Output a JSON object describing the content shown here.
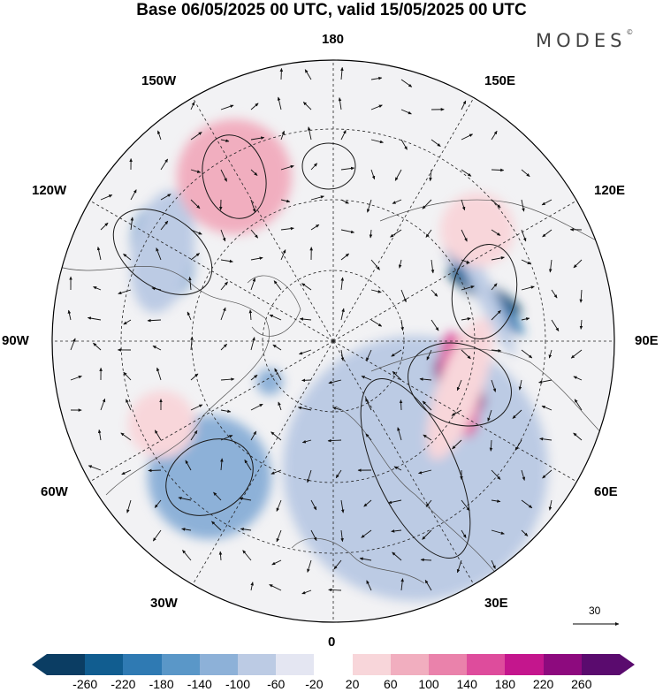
{
  "title": "Base 06/05/2025 00 UTC, valid 15/05/2025 00 UTC",
  "brand": "MODES",
  "brand_mark": "©",
  "projection": "north-polar-stereographic",
  "longitude_labels": {
    "lon_180": "180",
    "lon_150e": "150E",
    "lon_120e": "120E",
    "lon_90e": "90E",
    "lon_60e": "60E",
    "lon_30e": "30E",
    "lon_0": "0",
    "lon_30w": "30W",
    "lon_60w": "60W",
    "lon_90w": "90W",
    "lon_120w": "120W",
    "lon_150w": "150W"
  },
  "reference_vector": {
    "label": "30"
  },
  "colorbar": {
    "colors": [
      "#0b3d63",
      "#115d90",
      "#2f7ab3",
      "#5a97c8",
      "#8db1d8",
      "#bccbe4",
      "#e4e6f2",
      "#ffffff",
      "#f8d6da",
      "#f1aebf",
      "#ea82ab",
      "#de4c9c",
      "#c4168d",
      "#8d0a7e",
      "#5a0b6e"
    ],
    "tick_labels": [
      "-260",
      "-220",
      "-180",
      "-140",
      "-100",
      "-60",
      "-20",
      "20",
      "60",
      "100",
      "140",
      "180",
      "220",
      "260"
    ]
  }
}
